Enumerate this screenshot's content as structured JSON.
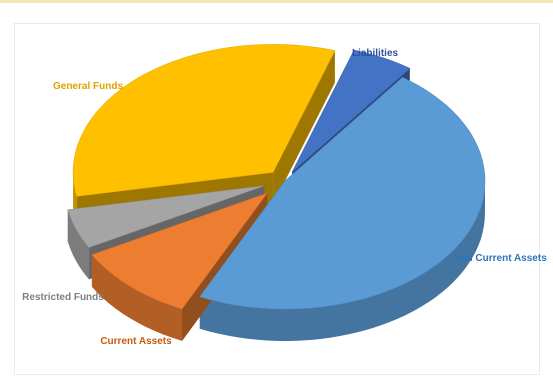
{
  "chart_data": {
    "type": "pie",
    "style": "3d-exploded",
    "title": "",
    "categories": [
      "Liabilities",
      "Non Current Assets",
      "Current Assets",
      "Restricted Funds",
      "General Funds"
    ],
    "values": [
      5,
      47,
      10,
      5,
      33
    ],
    "colors": [
      "#4472c4",
      "#5b9bd5",
      "#ed7d31",
      "#a5a5a5",
      "#ffc000"
    ],
    "label_colors": [
      "#2f4f9f",
      "#2e75b6",
      "#c55a11",
      "#7f7f7f",
      "#d9a400"
    ],
    "legend": "none",
    "data_labels": "category-names"
  }
}
